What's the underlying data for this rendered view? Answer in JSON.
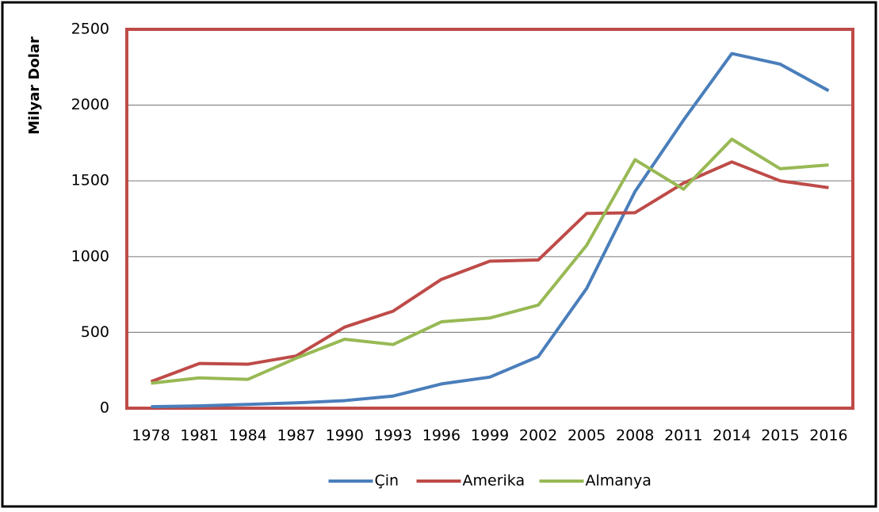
{
  "chart_data": {
    "type": "line",
    "y_label": "Milyar Dolar",
    "categories": [
      "1978",
      "1981",
      "1984",
      "1987",
      "1990",
      "1993",
      "1996",
      "1999",
      "2002",
      "2005",
      "2008",
      "2011",
      "2014",
      "2015",
      "2016"
    ],
    "series": [
      {
        "name": "Çin",
        "color": "#4a7ebb",
        "values": [
          10,
          15,
          25,
          35,
          50,
          80,
          160,
          205,
          340,
          790,
          1430,
          1900,
          2340,
          2270,
          2095
        ]
      },
      {
        "name": "Amerika",
        "color": "#be4b48",
        "values": [
          175,
          295,
          290,
          345,
          535,
          640,
          850,
          970,
          978,
          1285,
          1290,
          1485,
          1625,
          1500,
          1455
        ]
      },
      {
        "name": "Almanya",
        "color": "#98b954",
        "values": [
          165,
          200,
          190,
          330,
          455,
          420,
          570,
          595,
          680,
          1075,
          1640,
          1445,
          1775,
          1580,
          1605
        ]
      }
    ],
    "ylim": [
      0,
      2500
    ],
    "yticks": [
      0,
      500,
      1000,
      1500,
      2000,
      2500
    ],
    "grid": true,
    "legend": "bottom",
    "frame_color": "#be4b48"
  }
}
